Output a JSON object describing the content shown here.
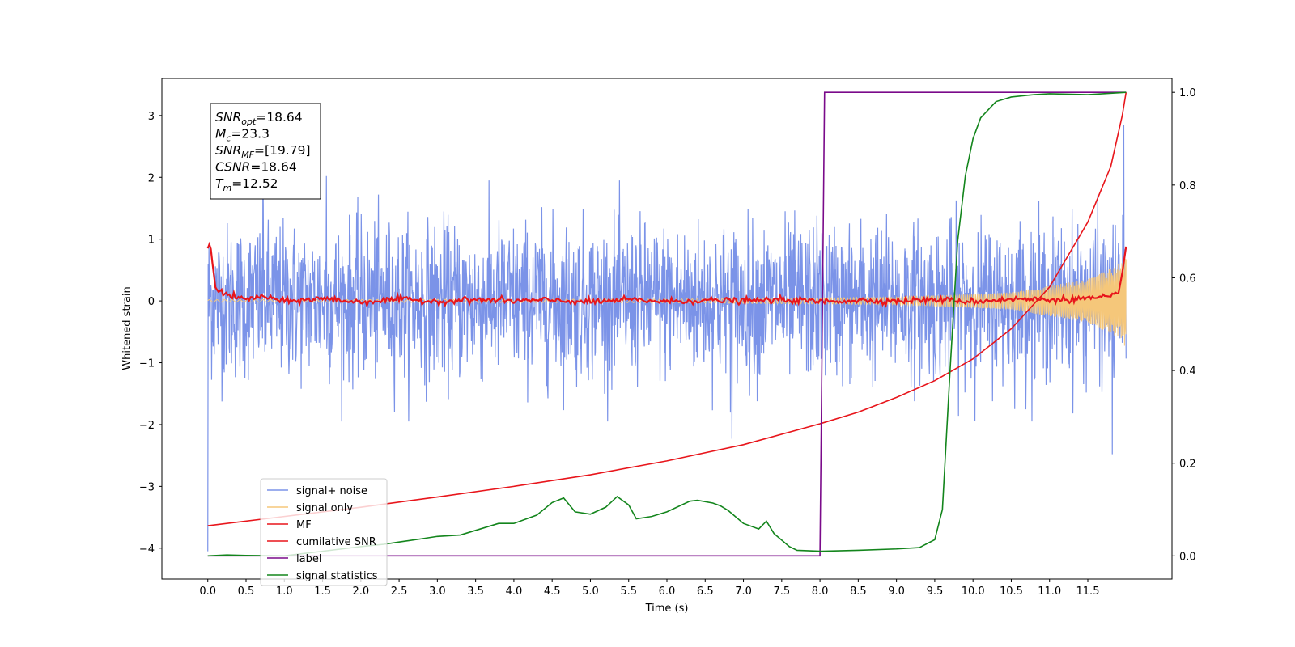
{
  "chart_data": {
    "type": "line",
    "xlabel": "Time (s)",
    "ylabel": "Whitened strain",
    "xlim": [
      -0.6,
      12.6
    ],
    "ylim": [
      -4.5,
      3.6
    ],
    "y2lim": [
      -0.05,
      1.03
    ],
    "x_ticks": [
      0.0,
      0.5,
      1.0,
      1.5,
      2.0,
      2.5,
      3.0,
      3.5,
      4.0,
      4.5,
      5.0,
      5.5,
      6.0,
      6.5,
      7.0,
      7.5,
      8.0,
      8.5,
      9.0,
      9.5,
      10.0,
      10.5,
      11.0,
      11.5
    ],
    "x_tick_labels": [
      "0.0",
      "0.5",
      "1.0",
      "1.5",
      "2.0",
      "2.5",
      "3.0",
      "3.5",
      "4.0",
      "4.5",
      "5.0",
      "5.5",
      "6.0",
      "6.5",
      "7.0",
      "7.5",
      "8.0",
      "8.5",
      "9.0",
      "9.5",
      "10.0",
      "10.5",
      "11.0",
      "11.5"
    ],
    "y_ticks": [
      -4,
      -3,
      -2,
      -1,
      0,
      1,
      2,
      3
    ],
    "y_tick_labels": [
      "−4",
      "−3",
      "−2",
      "−1",
      "0",
      "1",
      "2",
      "3"
    ],
    "y2_ticks": [
      0.0,
      0.2,
      0.4,
      0.6,
      0.8,
      1.0
    ],
    "y2_tick_labels": [
      "0.0",
      "0.2",
      "0.4",
      "0.6",
      "0.8",
      "1.0"
    ],
    "grid": false,
    "legend_position": "lower-left",
    "info_box": {
      "lines": [
        {
          "base": "SNR",
          "sub": "opt",
          "value": "=18.64"
        },
        {
          "base": "M",
          "sub": "c",
          "value": "=23.3"
        },
        {
          "base": "SNR",
          "sub": "MF",
          "value": "=[19.79]"
        },
        {
          "base": "CSNR",
          "sub": "",
          "value": "=18.64"
        },
        {
          "base": "T",
          "sub": "m",
          "value": "=12.52"
        }
      ]
    },
    "series": [
      {
        "name": "signal+ noise",
        "color": "#7b93e8",
        "axis": "left",
        "style": "noise",
        "x_range": [
          0.0,
          12.0
        ],
        "noise_std": 0.62,
        "approx_extremes": [
          [
            0.72,
            2.05
          ],
          [
            1.55,
            2.02
          ],
          [
            6.85,
            -2.23
          ],
          [
            11.82,
            -2.48
          ],
          [
            11.97,
            2.85
          ],
          [
            0.0,
            -4.05
          ]
        ]
      },
      {
        "name": "signal only",
        "color": "#f5c77a",
        "axis": "left",
        "style": "chirp",
        "x_range": [
          0.0,
          12.0
        ],
        "amplitude_envelope": {
          "x": [
            0.0,
            6.0,
            9.0,
            10.5,
            11.5,
            11.95,
            12.0
          ],
          "y": [
            0.02,
            0.03,
            0.06,
            0.14,
            0.35,
            0.62,
            0.8
          ]
        }
      },
      {
        "name": "MF",
        "color": "#e8151b",
        "axis": "left",
        "x": [
          0.0,
          0.03,
          0.06,
          0.1,
          0.2,
          0.3,
          0.5,
          0.7,
          1.0,
          1.5,
          2.0,
          2.5,
          3.0,
          3.5,
          4.0,
          4.5,
          5.0,
          5.5,
          6.0,
          6.5,
          7.0,
          7.5,
          8.0,
          8.5,
          9.0,
          9.5,
          10.0,
          10.5,
          11.0,
          11.5,
          11.8,
          11.9,
          11.95,
          12.0
        ],
        "y": [
          0.85,
          0.95,
          0.62,
          0.22,
          0.13,
          0.08,
          0.02,
          0.08,
          -0.01,
          0.04,
          -0.02,
          0.03,
          -0.01,
          0.02,
          0.0,
          0.01,
          -0.02,
          0.02,
          -0.01,
          0.01,
          0.0,
          0.02,
          -0.01,
          0.01,
          0.0,
          0.02,
          -0.01,
          0.03,
          0.02,
          0.04,
          0.06,
          0.12,
          0.45,
          0.88
        ]
      },
      {
        "name": "cumilative SNR",
        "color": "#e8151b",
        "axis": "right",
        "x": [
          0.0,
          1.0,
          2.0,
          3.0,
          4.0,
          5.0,
          6.0,
          7.0,
          8.0,
          8.5,
          9.0,
          9.5,
          10.0,
          10.5,
          11.0,
          11.5,
          11.8,
          11.95,
          12.0
        ],
        "y": [
          0.065,
          0.085,
          0.105,
          0.127,
          0.15,
          0.175,
          0.205,
          0.24,
          0.285,
          0.31,
          0.342,
          0.378,
          0.425,
          0.49,
          0.58,
          0.72,
          0.84,
          0.95,
          1.0
        ]
      },
      {
        "name": "label",
        "color": "#7a0a8a",
        "axis": "right",
        "x": [
          0.0,
          8.0,
          8.06,
          12.0
        ],
        "y": [
          0.0,
          0.0,
          1.0,
          1.0
        ]
      },
      {
        "name": "signal statistics",
        "color": "#13851c",
        "axis": "right",
        "x": [
          0.0,
          0.25,
          0.5,
          1.0,
          1.5,
          2.0,
          2.3,
          2.5,
          2.8,
          3.0,
          3.3,
          3.5,
          3.8,
          4.0,
          4.3,
          4.5,
          4.65,
          4.8,
          5.0,
          5.2,
          5.35,
          5.5,
          5.6,
          5.8,
          6.0,
          6.3,
          6.4,
          6.6,
          6.7,
          6.8,
          7.0,
          7.2,
          7.3,
          7.4,
          7.6,
          7.7,
          8.0,
          8.5,
          9.0,
          9.3,
          9.5,
          9.6,
          9.7,
          9.8,
          9.9,
          10.0,
          10.1,
          10.3,
          10.5,
          10.8,
          11.0,
          11.5,
          12.0
        ],
        "y": [
          0.0,
          0.002,
          0.001,
          0.0,
          0.01,
          0.02,
          0.025,
          0.03,
          0.037,
          0.042,
          0.045,
          0.055,
          0.07,
          0.07,
          0.088,
          0.115,
          0.125,
          0.095,
          0.09,
          0.105,
          0.128,
          0.11,
          0.08,
          0.085,
          0.095,
          0.118,
          0.12,
          0.114,
          0.108,
          0.098,
          0.07,
          0.058,
          0.075,
          0.048,
          0.02,
          0.012,
          0.01,
          0.012,
          0.015,
          0.018,
          0.035,
          0.1,
          0.4,
          0.68,
          0.82,
          0.9,
          0.945,
          0.98,
          0.99,
          0.995,
          0.997,
          0.995,
          1.0
        ]
      }
    ]
  }
}
